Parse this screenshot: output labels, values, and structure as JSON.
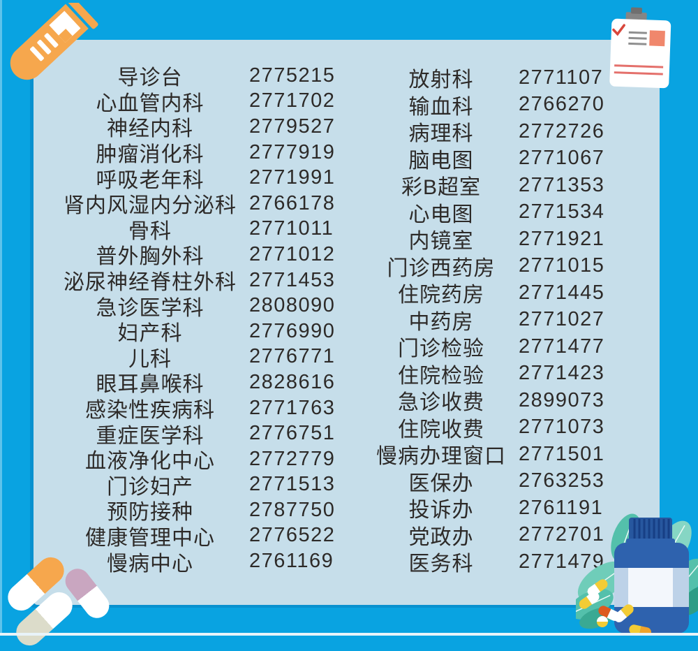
{
  "page": {
    "type": "hospital-phone-directory-poster",
    "colors": {
      "background_blue": "#09a3e1",
      "panel_light_blue": "#c6deea",
      "text": "#2d2a28",
      "tube_orange": "#f6a74d",
      "leaf_teal": "#54c0ab",
      "bottle_blue": "#2e62ae",
      "check_red": "#d8473c",
      "salmon": "#f0876c"
    },
    "icons": [
      "test-tube-icon",
      "clipboard-icon",
      "capsule-pills-icon",
      "leaves-icon",
      "medicine-bottle-icon"
    ]
  },
  "directory": {
    "left_column": [
      {
        "name": "导诊台",
        "phone": "2775215"
      },
      {
        "name": "心血管内科",
        "phone": "2771702"
      },
      {
        "name": "神经内科",
        "phone": "2779527"
      },
      {
        "name": "肿瘤消化科",
        "phone": "2777919"
      },
      {
        "name": "呼吸老年科",
        "phone": "2771991"
      },
      {
        "name": "肾内风湿内分泌科",
        "phone": "2766178"
      },
      {
        "name": "骨科",
        "phone": "2771011"
      },
      {
        "name": "普外胸外科",
        "phone": "2771012"
      },
      {
        "name": "泌尿神经脊柱外科",
        "phone": "2771453"
      },
      {
        "name": "急诊医学科",
        "phone": "2808090"
      },
      {
        "name": "妇产科",
        "phone": "2776990"
      },
      {
        "name": "儿科",
        "phone": "2776771"
      },
      {
        "name": "眼耳鼻喉科",
        "phone": "2828616"
      },
      {
        "name": "感染性疾病科",
        "phone": "2771763"
      },
      {
        "name": "重症医学科",
        "phone": "2776751"
      },
      {
        "name": "血液净化中心",
        "phone": "2772779"
      },
      {
        "name": "门诊妇产",
        "phone": "2771513"
      },
      {
        "name": "预防接种",
        "phone": "2787750"
      },
      {
        "name": "健康管理中心",
        "phone": "2776522"
      },
      {
        "name": "慢病中心",
        "phone": "2761169"
      }
    ],
    "right_column": [
      {
        "name": "放射科",
        "phone": "2771107"
      },
      {
        "name": "输血科",
        "phone": "2766270"
      },
      {
        "name": "病理科",
        "phone": "2772726"
      },
      {
        "name": "脑电图",
        "phone": "2771067"
      },
      {
        "name": "彩B超室",
        "phone": "2771353"
      },
      {
        "name": "心电图",
        "phone": "2771534"
      },
      {
        "name": "内镜室",
        "phone": "2771921"
      },
      {
        "name": "门诊西药房",
        "phone": "2771015"
      },
      {
        "name": "住院药房",
        "phone": "2771445"
      },
      {
        "name": "中药房",
        "phone": "2771027"
      },
      {
        "name": "门诊检验",
        "phone": "2771477"
      },
      {
        "name": "住院检验",
        "phone": "2771423"
      },
      {
        "name": "急诊收费",
        "phone": "2899073"
      },
      {
        "name": "住院收费",
        "phone": "2771073"
      },
      {
        "name": "慢病办理窗口",
        "phone": "2771501"
      },
      {
        "name": "医保办",
        "phone": "2763253"
      },
      {
        "name": "投诉办",
        "phone": "2761191"
      },
      {
        "name": "党政办",
        "phone": "2772701"
      },
      {
        "name": "医务科",
        "phone": "2771479"
      }
    ]
  }
}
